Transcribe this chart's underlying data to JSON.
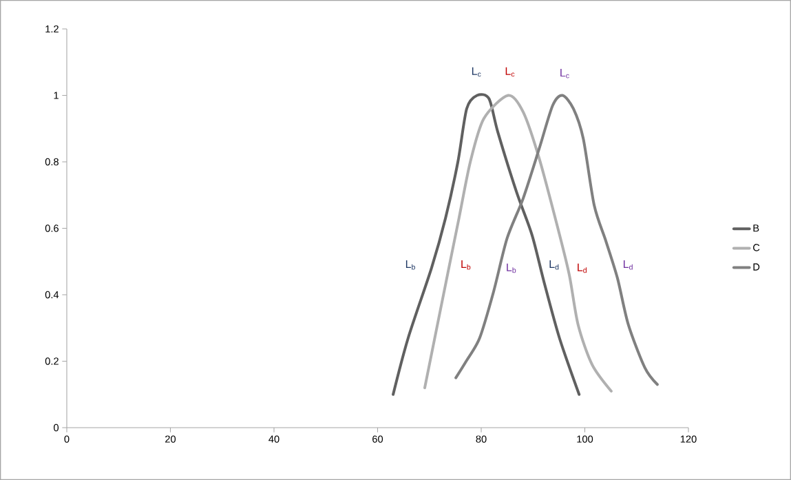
{
  "chart_data": {
    "type": "line",
    "xlim": [
      0,
      120
    ],
    "ylim": [
      0,
      1.2
    ],
    "xticks": [
      0,
      20,
      40,
      60,
      80,
      100,
      120
    ],
    "yticks": [
      0,
      0.2,
      0.4,
      0.6,
      0.8,
      1,
      1.2
    ],
    "grid": false,
    "legend": "right",
    "marker": "none",
    "line_style": "solid",
    "series": [
      {
        "name": "B",
        "color": "#606060",
        "x": [
          63,
          65.9,
          70.4,
          73.1,
          75.5,
          77.2,
          79.2,
          81.5,
          83.2,
          86.8,
          89.8,
          92.1,
          95.1,
          98.9
        ],
        "values": [
          0.1,
          0.27,
          0.48,
          0.63,
          0.8,
          0.96,
          1.0,
          0.99,
          0.89,
          0.71,
          0.58,
          0.44,
          0.27,
          0.1
        ]
      },
      {
        "name": "C",
        "color": "#b0b0b0",
        "x": [
          69.1,
          73.1,
          75.7,
          77.9,
          80.5,
          85.2,
          88.1,
          91.2,
          94.8,
          97.0,
          98.7,
          101.4,
          105.1
        ],
        "values": [
          0.12,
          0.43,
          0.63,
          0.8,
          0.93,
          1.0,
          0.95,
          0.81,
          0.6,
          0.46,
          0.31,
          0.19,
          0.11
        ]
      },
      {
        "name": "D",
        "color": "#808080",
        "x": [
          75.1,
          77.1,
          79.7,
          82.4,
          85.0,
          88.1,
          91.2,
          93.8,
          95.7,
          97.8,
          99.7,
          101.8,
          104.1,
          106.3,
          108.4,
          111.6,
          114
        ],
        "values": [
          0.15,
          0.2,
          0.27,
          0.41,
          0.57,
          0.69,
          0.84,
          0.97,
          1.0,
          0.96,
          0.87,
          0.67,
          0.56,
          0.45,
          0.31,
          0.18,
          0.13
        ]
      }
    ],
    "annotations": [
      "L$_{c}$",
      "L$_{c}$",
      "L$_{c}$",
      "L$_{b}$",
      "L$_{b}$",
      "L$_{b}$",
      "L$_{d}$",
      "L$_{d}$",
      "L$_{d}$"
    ]
  }
}
